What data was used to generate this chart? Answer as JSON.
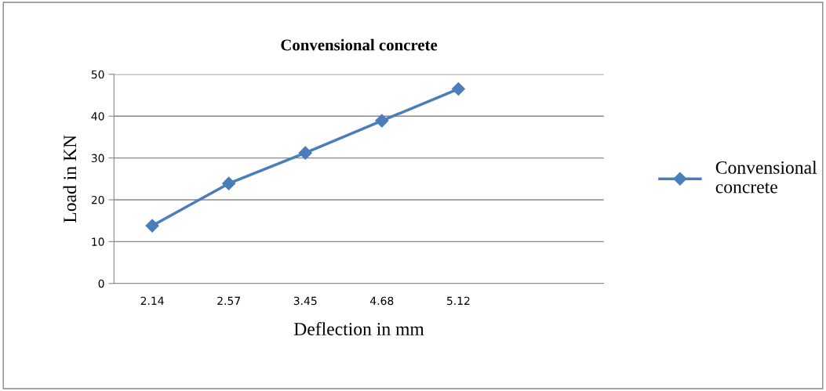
{
  "chart_data": {
    "type": "line",
    "title": "Convensional concrete",
    "xlabel": "Deflection in mm",
    "ylabel": "Load in KN",
    "categories": [
      "2.14",
      "2.57",
      "3.45",
      "4.68",
      "5.12"
    ],
    "series": [
      {
        "name": "Convensional\nconcrete",
        "color": "#4a7ebb",
        "values": [
          13.8,
          23.9,
          31.2,
          38.9,
          46.5
        ]
      }
    ],
    "ylim": [
      0,
      50
    ],
    "yticks": [
      0,
      10,
      20,
      30,
      40,
      50
    ],
    "grid": "y",
    "legend": "right",
    "marker": "diamond",
    "line_style": "solid"
  }
}
